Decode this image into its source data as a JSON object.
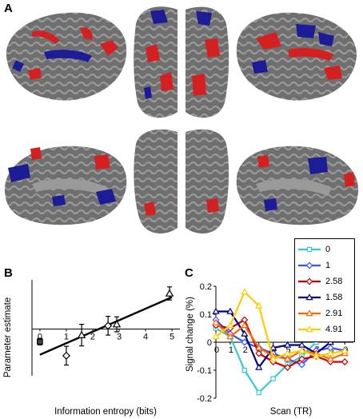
{
  "panels": {
    "a": "A",
    "b": "B",
    "c": "C"
  },
  "colors": {
    "brain_gray": "#6f6f6f",
    "activation_red": "#d42020",
    "deactivation_blue": "#1c1c96"
  },
  "chart_data": [
    {
      "panel": "B",
      "type": "scatter",
      "xlabel": "Information entropy (bits)",
      "ylabel": "Parameter estimate",
      "xlim": [
        -0.3,
        5.3
      ],
      "ylim": [
        -1.0,
        1.05
      ],
      "xticks": [
        "0",
        "1",
        "2",
        "3",
        "4",
        "5"
      ],
      "points": [
        {
          "x": 0.0,
          "y": -0.27,
          "err": 0.07,
          "marker": "square"
        },
        {
          "x": 1.0,
          "y": -0.57,
          "err": 0.2,
          "marker": "diamond"
        },
        {
          "x": 1.58,
          "y": -0.13,
          "err": 0.23,
          "marker": "triangle"
        },
        {
          "x": 2.58,
          "y": 0.07,
          "err": 0.2,
          "marker": "diamond"
        },
        {
          "x": 2.91,
          "y": 0.1,
          "err": 0.16,
          "marker": "triangle"
        },
        {
          "x": 4.91,
          "y": 0.76,
          "err": 0.14,
          "marker": "triangle"
        }
      ],
      "fit_line": {
        "x": [
          0,
          5
        ],
        "y": [
          -0.55,
          0.68
        ]
      }
    },
    {
      "panel": "C",
      "type": "line",
      "xlabel": "Scan (TR)",
      "ylabel": "Signal change (%)",
      "xlim": [
        0,
        9.6
      ],
      "ylim": [
        -0.2,
        0.2
      ],
      "yticks": [
        "0.2",
        "0.1",
        "0",
        "-0.1",
        "-0.2"
      ],
      "xticks": [
        "0",
        "1",
        "2",
        "3",
        "4",
        "5",
        "6",
        "7",
        "8",
        "9"
      ],
      "x": [
        0,
        1,
        2,
        3,
        4,
        5,
        6,
        7,
        8,
        9
      ],
      "series": [
        {
          "name": "0",
          "color": "#33cccc",
          "marker": "square",
          "values": [
            0.05,
            0.02,
            -0.1,
            -0.18,
            -0.13,
            -0.08,
            -0.05,
            0.0,
            0.1,
            0.04
          ]
        },
        {
          "name": "1",
          "color": "#3355ff",
          "marker": "diamond",
          "values": [
            0.08,
            0.03,
            0.0,
            -0.02,
            -0.04,
            -0.06,
            -0.08,
            -0.03,
            -0.02,
            -0.03
          ]
        },
        {
          "name": "2.58",
          "color": "#cc0000",
          "marker": "diamond",
          "values": [
            0.06,
            0.05,
            0.08,
            -0.04,
            -0.07,
            -0.09,
            -0.06,
            -0.05,
            -0.07,
            -0.07
          ]
        },
        {
          "name": "1.58",
          "color": "#000080",
          "marker": "triangle",
          "values": [
            0.11,
            0.11,
            0.03,
            -0.09,
            -0.02,
            -0.01,
            -0.01,
            -0.04,
            0.0,
            0.04
          ]
        },
        {
          "name": "2.91",
          "color": "#ff6600",
          "marker": "triangle",
          "values": [
            0.07,
            0.02,
            0.06,
            -0.02,
            -0.05,
            -0.06,
            -0.03,
            -0.04,
            -0.06,
            -0.04
          ]
        },
        {
          "name": "4.91",
          "color": "#ffcc00",
          "marker": "triangle",
          "values": [
            0.02,
            0.06,
            0.18,
            0.13,
            -0.06,
            -0.04,
            -0.03,
            -0.05,
            -0.04,
            -0.03
          ]
        }
      ]
    }
  ]
}
